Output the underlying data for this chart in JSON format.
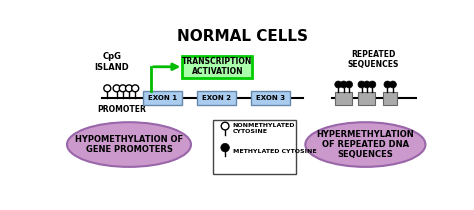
{
  "title": "NORMAL CELLS",
  "title_fontsize": 11,
  "bg_color": "#ffffff",
  "cpg_label": "CpG\nISLAND",
  "promoter_label": "PROMOTER",
  "repeated_label": "REPEATED\nSEQUENCES",
  "transcription_label": "TRANSCRIPTION\nACTIVATION",
  "exon_color": "#aaccee",
  "exon_border": "#6688aa",
  "transcription_box_color": "#aaffaa",
  "transcription_border": "#00cc00",
  "arrow_color": "#00bb00",
  "purple_ellipse_color": "#cc99cc",
  "purple_ellipse_edge": "#9966aa",
  "hypomethylation_label": "HYPOMETHYLATION OF\nGENE PROMOTERS",
  "hypermethylation_label": "HYPERMETHYLATION\nOF REPEATED DNA\nSEQUENCES",
  "legend_nonmethylated": "NONMETHYLATED\nCYTOSINE",
  "legend_methylated": "METHYLATED CYTOSINE",
  "line_color": "#000000",
  "repeated_gray_color": "#aaaaaa",
  "repeated_gray_edge": "#666666"
}
